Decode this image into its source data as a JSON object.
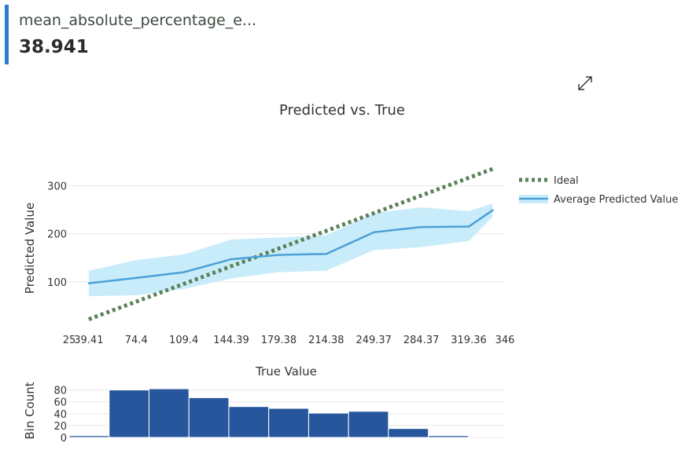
{
  "metric": {
    "name": "mean_absolute_percentage_e...",
    "value": "38.941"
  },
  "icons": {
    "expand": "expand-arrows-icon"
  },
  "colors": {
    "ideal": "#5b8159",
    "average": "#4ba0d8",
    "band": "#c9ecfa",
    "hist": "#27569d",
    "grid": "#e8e8e8"
  },
  "chart_data": [
    {
      "type": "line",
      "title": "Predicted vs. True",
      "ylabel": "Predicted Value",
      "xlim": [
        25,
        346
      ],
      "ylim": [
        0,
        340
      ],
      "x_ticks": [
        25,
        39.41,
        74.4,
        109.4,
        144.39,
        179.38,
        214.38,
        249.37,
        284.37,
        319.36,
        346
      ],
      "x_tick_labels": [
        "25",
        "39.41",
        "74.4",
        "109.4",
        "144.39",
        "179.38",
        "214.38",
        "249.37",
        "284.37",
        "319.36",
        "346"
      ],
      "y_ticks": [
        100,
        200,
        300
      ],
      "legend_position": "right",
      "series": [
        {
          "name": "Ideal",
          "style": "dotted",
          "x": [
            39.41,
            337
          ],
          "y": [
            22,
            335
          ]
        },
        {
          "name": "Average Predicted Value",
          "style": "solid-with-band",
          "x": [
            39.41,
            74.4,
            109.4,
            144.39,
            179.38,
            214.38,
            249.37,
            284.37,
            319.36,
            337
          ],
          "y": [
            97,
            108,
            120,
            147,
            156,
            158,
            203,
            214,
            215,
            249
          ],
          "upper": [
            123,
            145,
            157,
            188,
            192,
            197,
            243,
            255,
            247,
            263
          ],
          "lower": [
            70,
            72,
            85,
            107,
            120,
            123,
            166,
            172,
            185,
            235
          ]
        }
      ]
    },
    {
      "type": "bar",
      "title": "True Value",
      "ylabel": "Bin Count",
      "ylim": [
        0,
        90
      ],
      "y_ticks": [
        0,
        20,
        40,
        60,
        80
      ],
      "bins": [
        {
          "start": 25,
          "end": 54.4,
          "count": 3
        },
        {
          "start": 54.4,
          "end": 83.8,
          "count": 80
        },
        {
          "start": 83.8,
          "end": 113.2,
          "count": 82
        },
        {
          "start": 113.2,
          "end": 142.6,
          "count": 67
        },
        {
          "start": 142.6,
          "end": 172.0,
          "count": 52
        },
        {
          "start": 172.0,
          "end": 201.4,
          "count": 49
        },
        {
          "start": 201.4,
          "end": 230.8,
          "count": 41
        },
        {
          "start": 230.8,
          "end": 260.2,
          "count": 44
        },
        {
          "start": 260.2,
          "end": 289.6,
          "count": 15
        },
        {
          "start": 289.6,
          "end": 319.0,
          "count": 3
        }
      ]
    }
  ]
}
